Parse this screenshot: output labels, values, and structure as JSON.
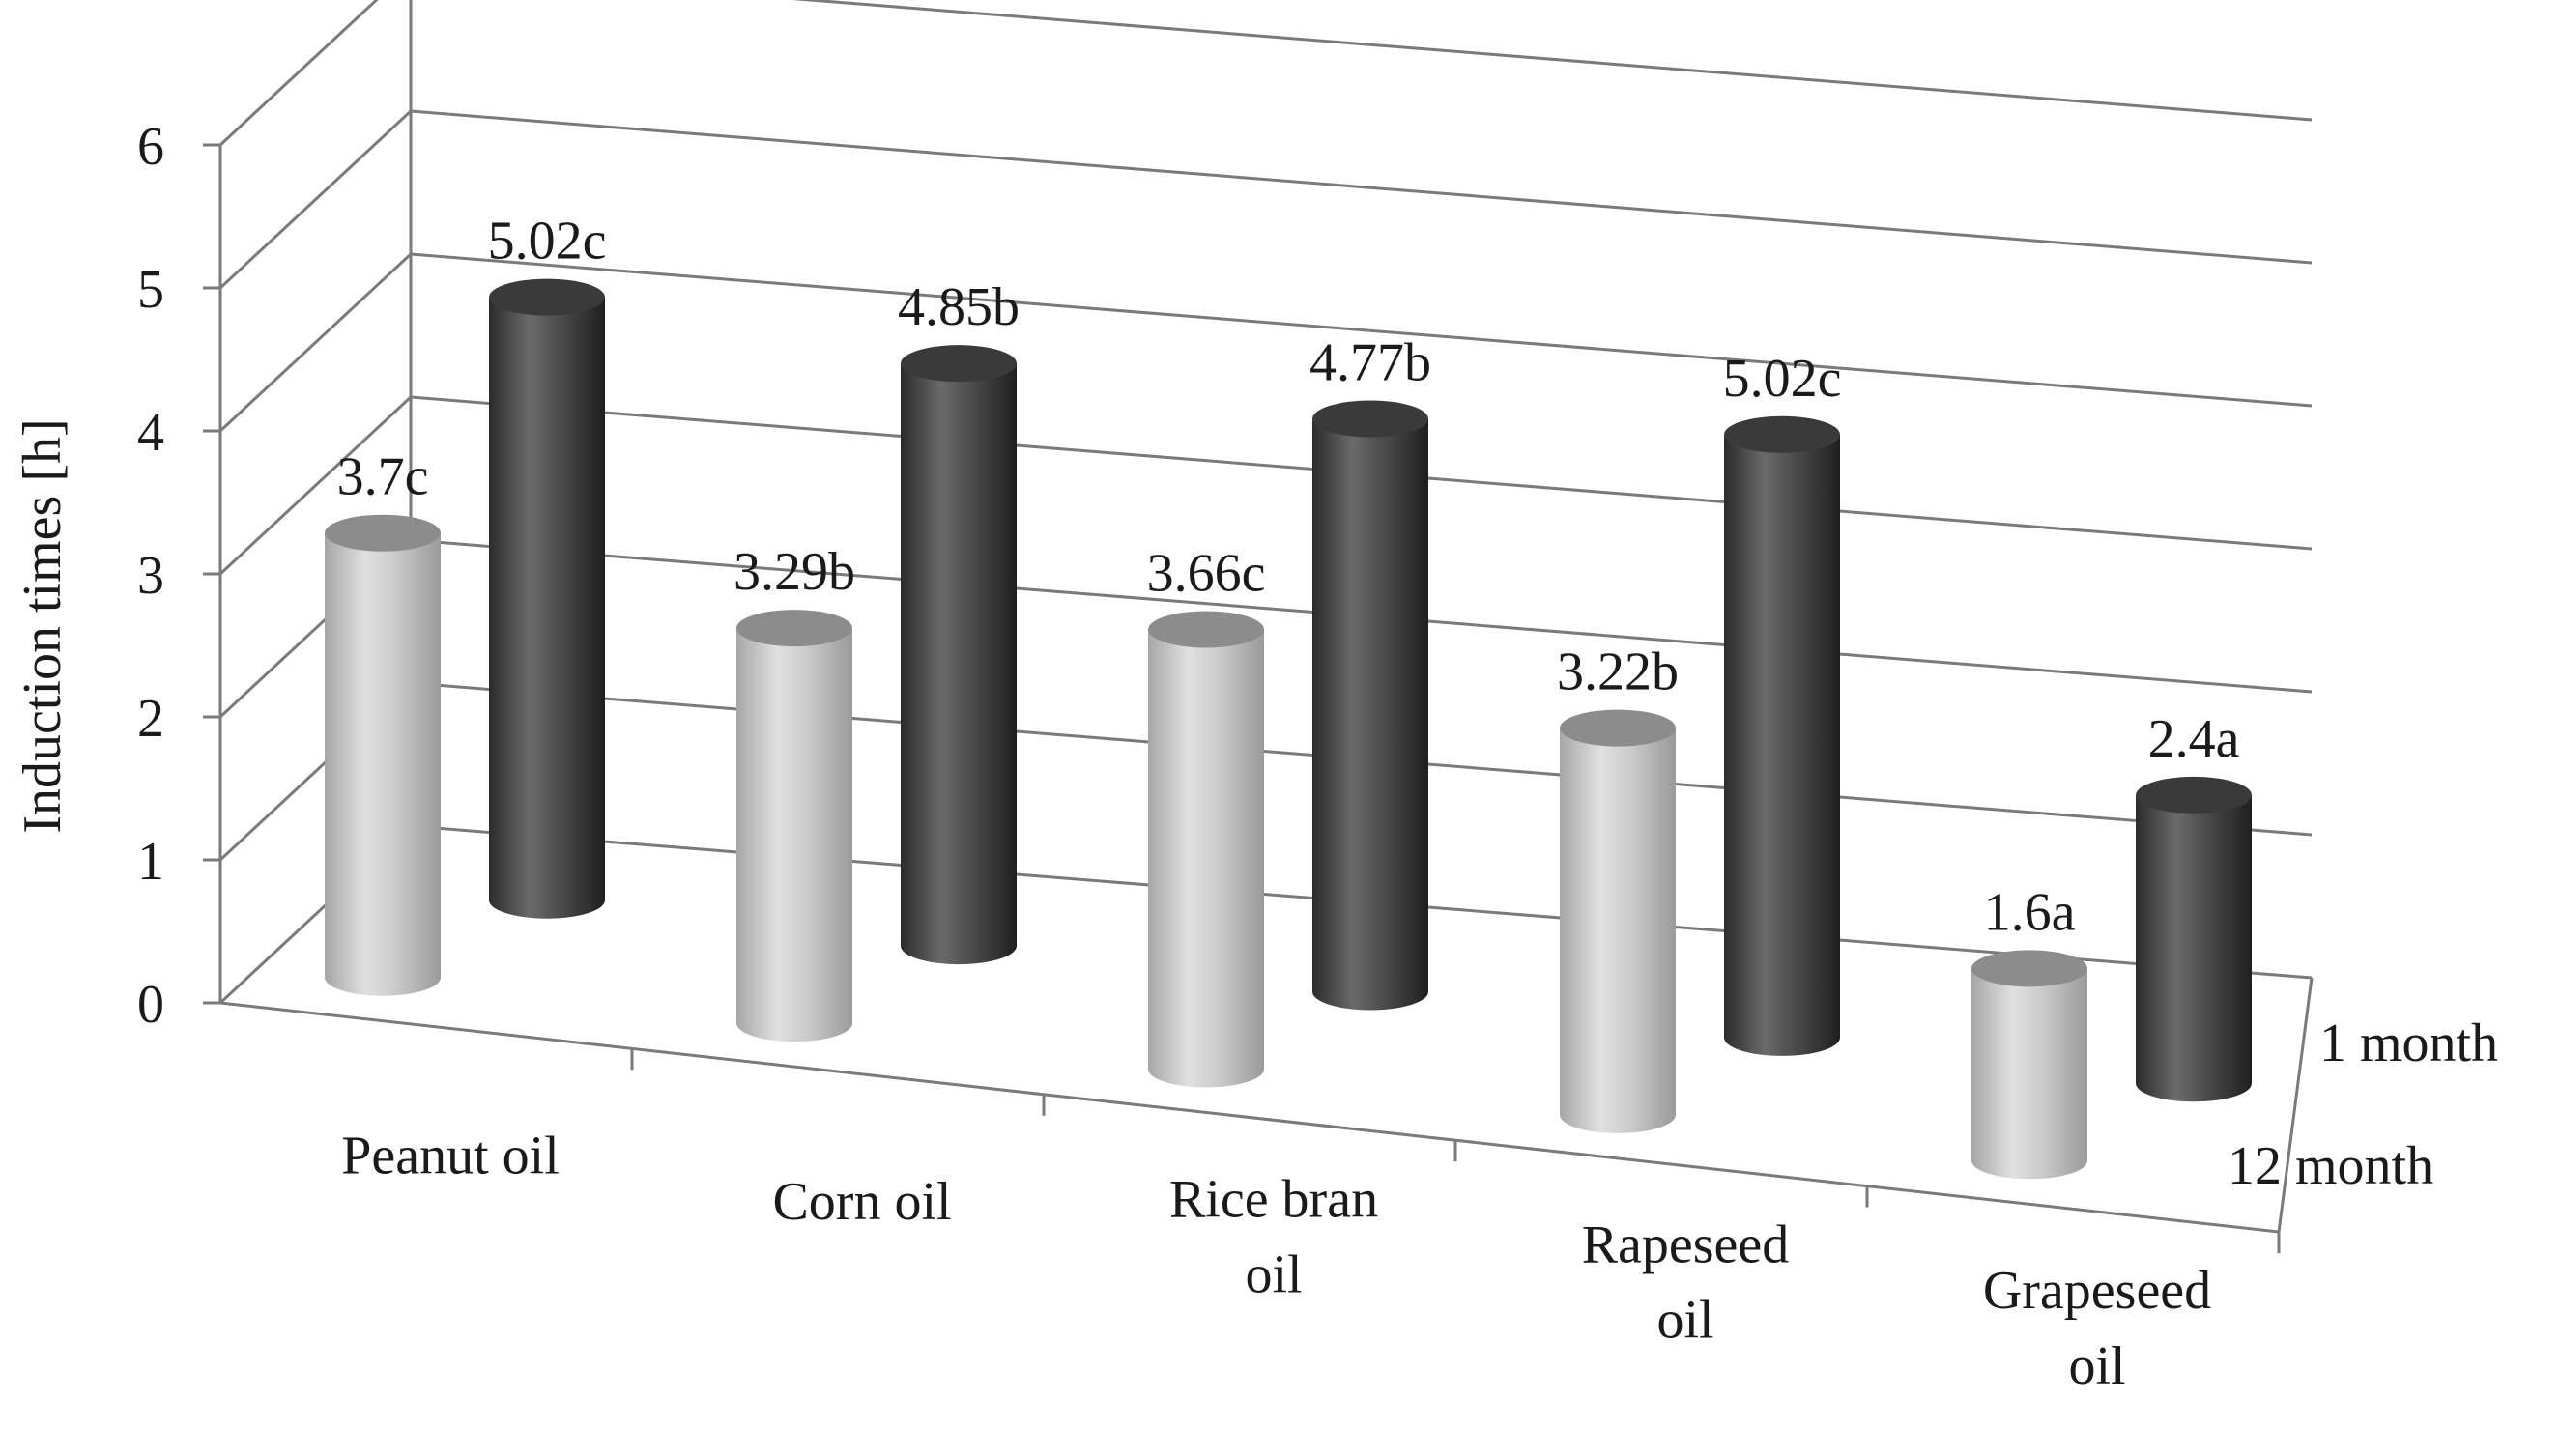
{
  "chart_data": {
    "type": "bar",
    "style": "3d-cylinder",
    "categories": [
      "Peanut oil",
      "Corn oil",
      "Rice bran oil",
      "Rapeseed oil",
      "Grapeseed oil"
    ],
    "category_lines": [
      [
        "Peanut oil"
      ],
      [
        "Corn oil"
      ],
      [
        "Rice bran",
        "oil"
      ],
      [
        "Rapeseed",
        "oil"
      ],
      [
        "Grapeseed",
        "oil"
      ]
    ],
    "series": [
      {
        "name": "1 month",
        "values": [
          5.02,
          4.85,
          4.77,
          5.02,
          2.4
        ],
        "labels": [
          "5.02c",
          "4.85b",
          "4.77b",
          "5.02c",
          "2.4a"
        ],
        "color": "#4a4a4a"
      },
      {
        "name": "12 month",
        "values": [
          3.7,
          3.29,
          3.66,
          3.22,
          1.6
        ],
        "labels": [
          "3.7c",
          "3.29b",
          "3.66c",
          "3.22b",
          "1.6a"
        ],
        "color": "#b8b8b8"
      }
    ],
    "ylabel": "Induction times [h]",
    "ylim": [
      0,
      6
    ],
    "yticks": [
      0,
      1,
      2,
      3,
      4,
      5,
      6
    ],
    "grid": true
  }
}
